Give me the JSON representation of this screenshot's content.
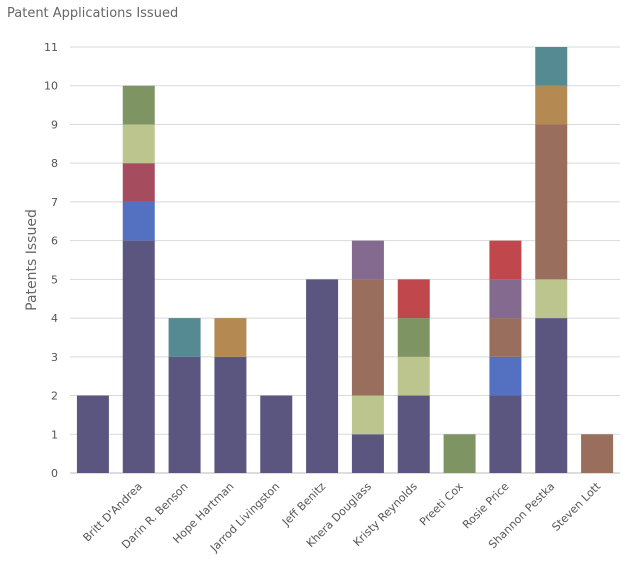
{
  "chart_data": {
    "type": "stacked_bar",
    "title": "Patent Applications Issued",
    "ylabel": "Patents Issued",
    "categories": [
      null,
      "Britt D'Andrea",
      "Darin R. Benson",
      "Hope Hartman",
      "Jarrod Livingston",
      "Jeff Benitz",
      "Khera Douglass",
      "Kristy Reynolds",
      "Preeti Cox",
      "Rosie Price",
      "Shannon Pestka",
      "Steven Lott"
    ],
    "series": [
      {
        "color": "#5b5680",
        "values": [
          2,
          6,
          3,
          3,
          2,
          5,
          1,
          2,
          0,
          2,
          4,
          0
        ]
      },
      {
        "color": "#5470c0",
        "values": [
          0,
          1,
          0,
          0,
          0,
          0,
          0,
          0,
          0,
          1,
          0,
          0
        ]
      },
      {
        "color": "#a54c5e",
        "values": [
          0,
          1,
          0,
          0,
          0,
          0,
          0,
          0,
          0,
          0,
          0,
          0
        ]
      },
      {
        "color": "#bcc58e",
        "values": [
          0,
          1,
          0,
          0,
          0,
          0,
          1,
          1,
          0,
          0,
          1,
          0
        ]
      },
      {
        "color": "#7e9563",
        "values": [
          0,
          1,
          0,
          0,
          0,
          0,
          0,
          1,
          1,
          0,
          0,
          0
        ]
      },
      {
        "color": "#9a6e5c",
        "values": [
          0,
          0,
          0,
          0,
          0,
          0,
          3,
          0,
          0,
          1,
          4,
          1
        ]
      },
      {
        "color": "#836a8e",
        "values": [
          0,
          0,
          0,
          0,
          0,
          0,
          1,
          0,
          0,
          1,
          0,
          0
        ]
      },
      {
        "color": "#c0474b",
        "values": [
          0,
          0,
          0,
          0,
          0,
          0,
          0,
          1,
          0,
          1,
          0,
          0
        ]
      },
      {
        "color": "#b48a52",
        "values": [
          0,
          0,
          0,
          1,
          0,
          0,
          0,
          0,
          0,
          0,
          1,
          0
        ]
      },
      {
        "color": "#558a93",
        "values": [
          0,
          0,
          1,
          0,
          0,
          0,
          0,
          0,
          0,
          0,
          1,
          0
        ]
      }
    ],
    "ylim": [
      0,
      11
    ],
    "yticks": [
      0,
      1,
      2,
      3,
      4,
      5,
      6,
      7,
      8,
      9,
      10,
      11
    ],
    "grid": true
  }
}
